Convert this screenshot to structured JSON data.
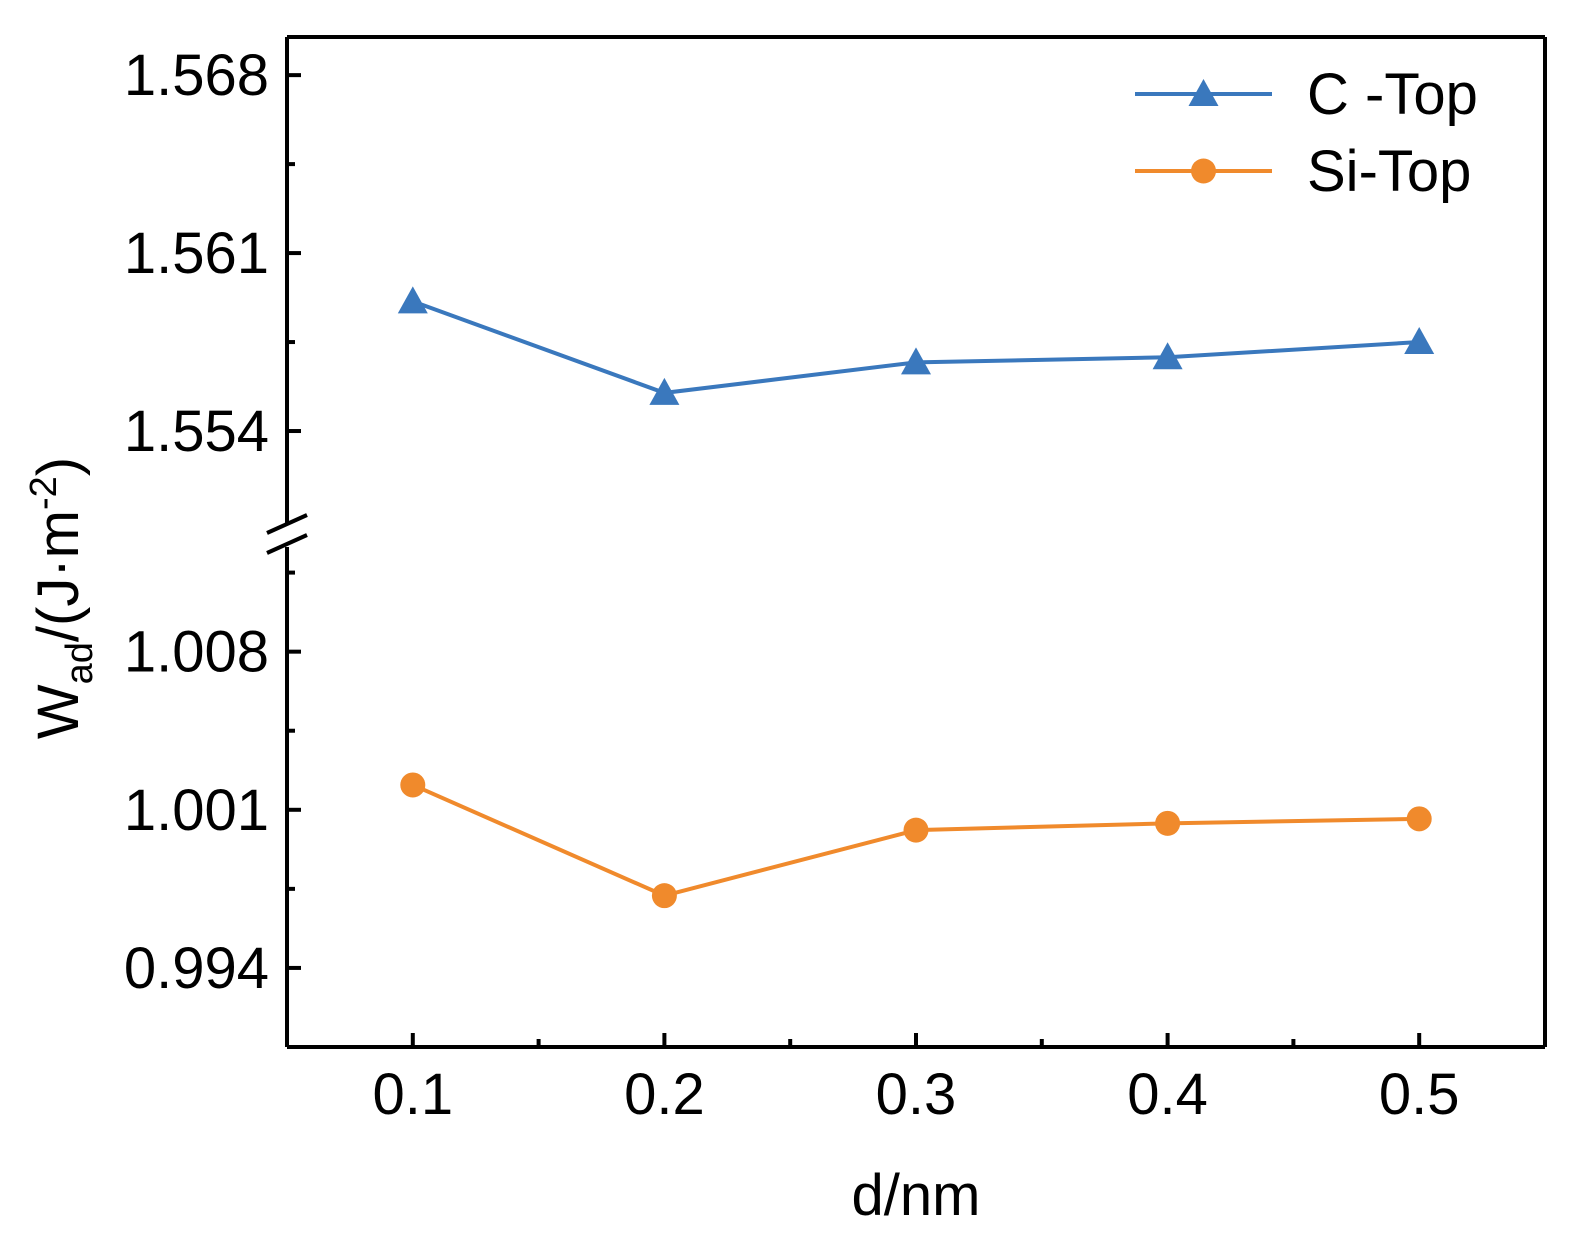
{
  "chart_data": {
    "type": "line",
    "title": "",
    "xlabel": "d/nm",
    "ylabel": {
      "main": "W",
      "sub": "ad",
      "rest": "/(J·m",
      "sup": "-2",
      "close": ")"
    },
    "x": [
      0.1,
      0.2,
      0.3,
      0.4,
      0.5
    ],
    "x_ticks": [
      "0.1",
      "0.2",
      "0.3",
      "0.4",
      "0.5"
    ],
    "xlim": [
      0.05,
      0.55
    ],
    "broken_y_axis": true,
    "y_upper_ticks": [
      "1.554",
      "1.561",
      "1.568"
    ],
    "y_upper_range": [
      1.5505,
      1.5695
    ],
    "y_lower_ticks": [
      "0.994",
      "1.001",
      "1.008"
    ],
    "y_lower_range": [
      0.9905,
      1.0125
    ],
    "legend_position": "top-right",
    "series": [
      {
        "name": "C -Top",
        "axis": "upper",
        "color": "#3a78bd",
        "marker": "triangle",
        "values": [
          1.5591,
          1.5555,
          1.5567,
          1.5569,
          1.5575
        ]
      },
      {
        "name": "Si-Top",
        "axis": "lower",
        "color": "#f08a2c",
        "marker": "circle",
        "values": [
          1.0021,
          0.9972,
          1.0001,
          1.0004,
          1.0006
        ]
      }
    ]
  }
}
